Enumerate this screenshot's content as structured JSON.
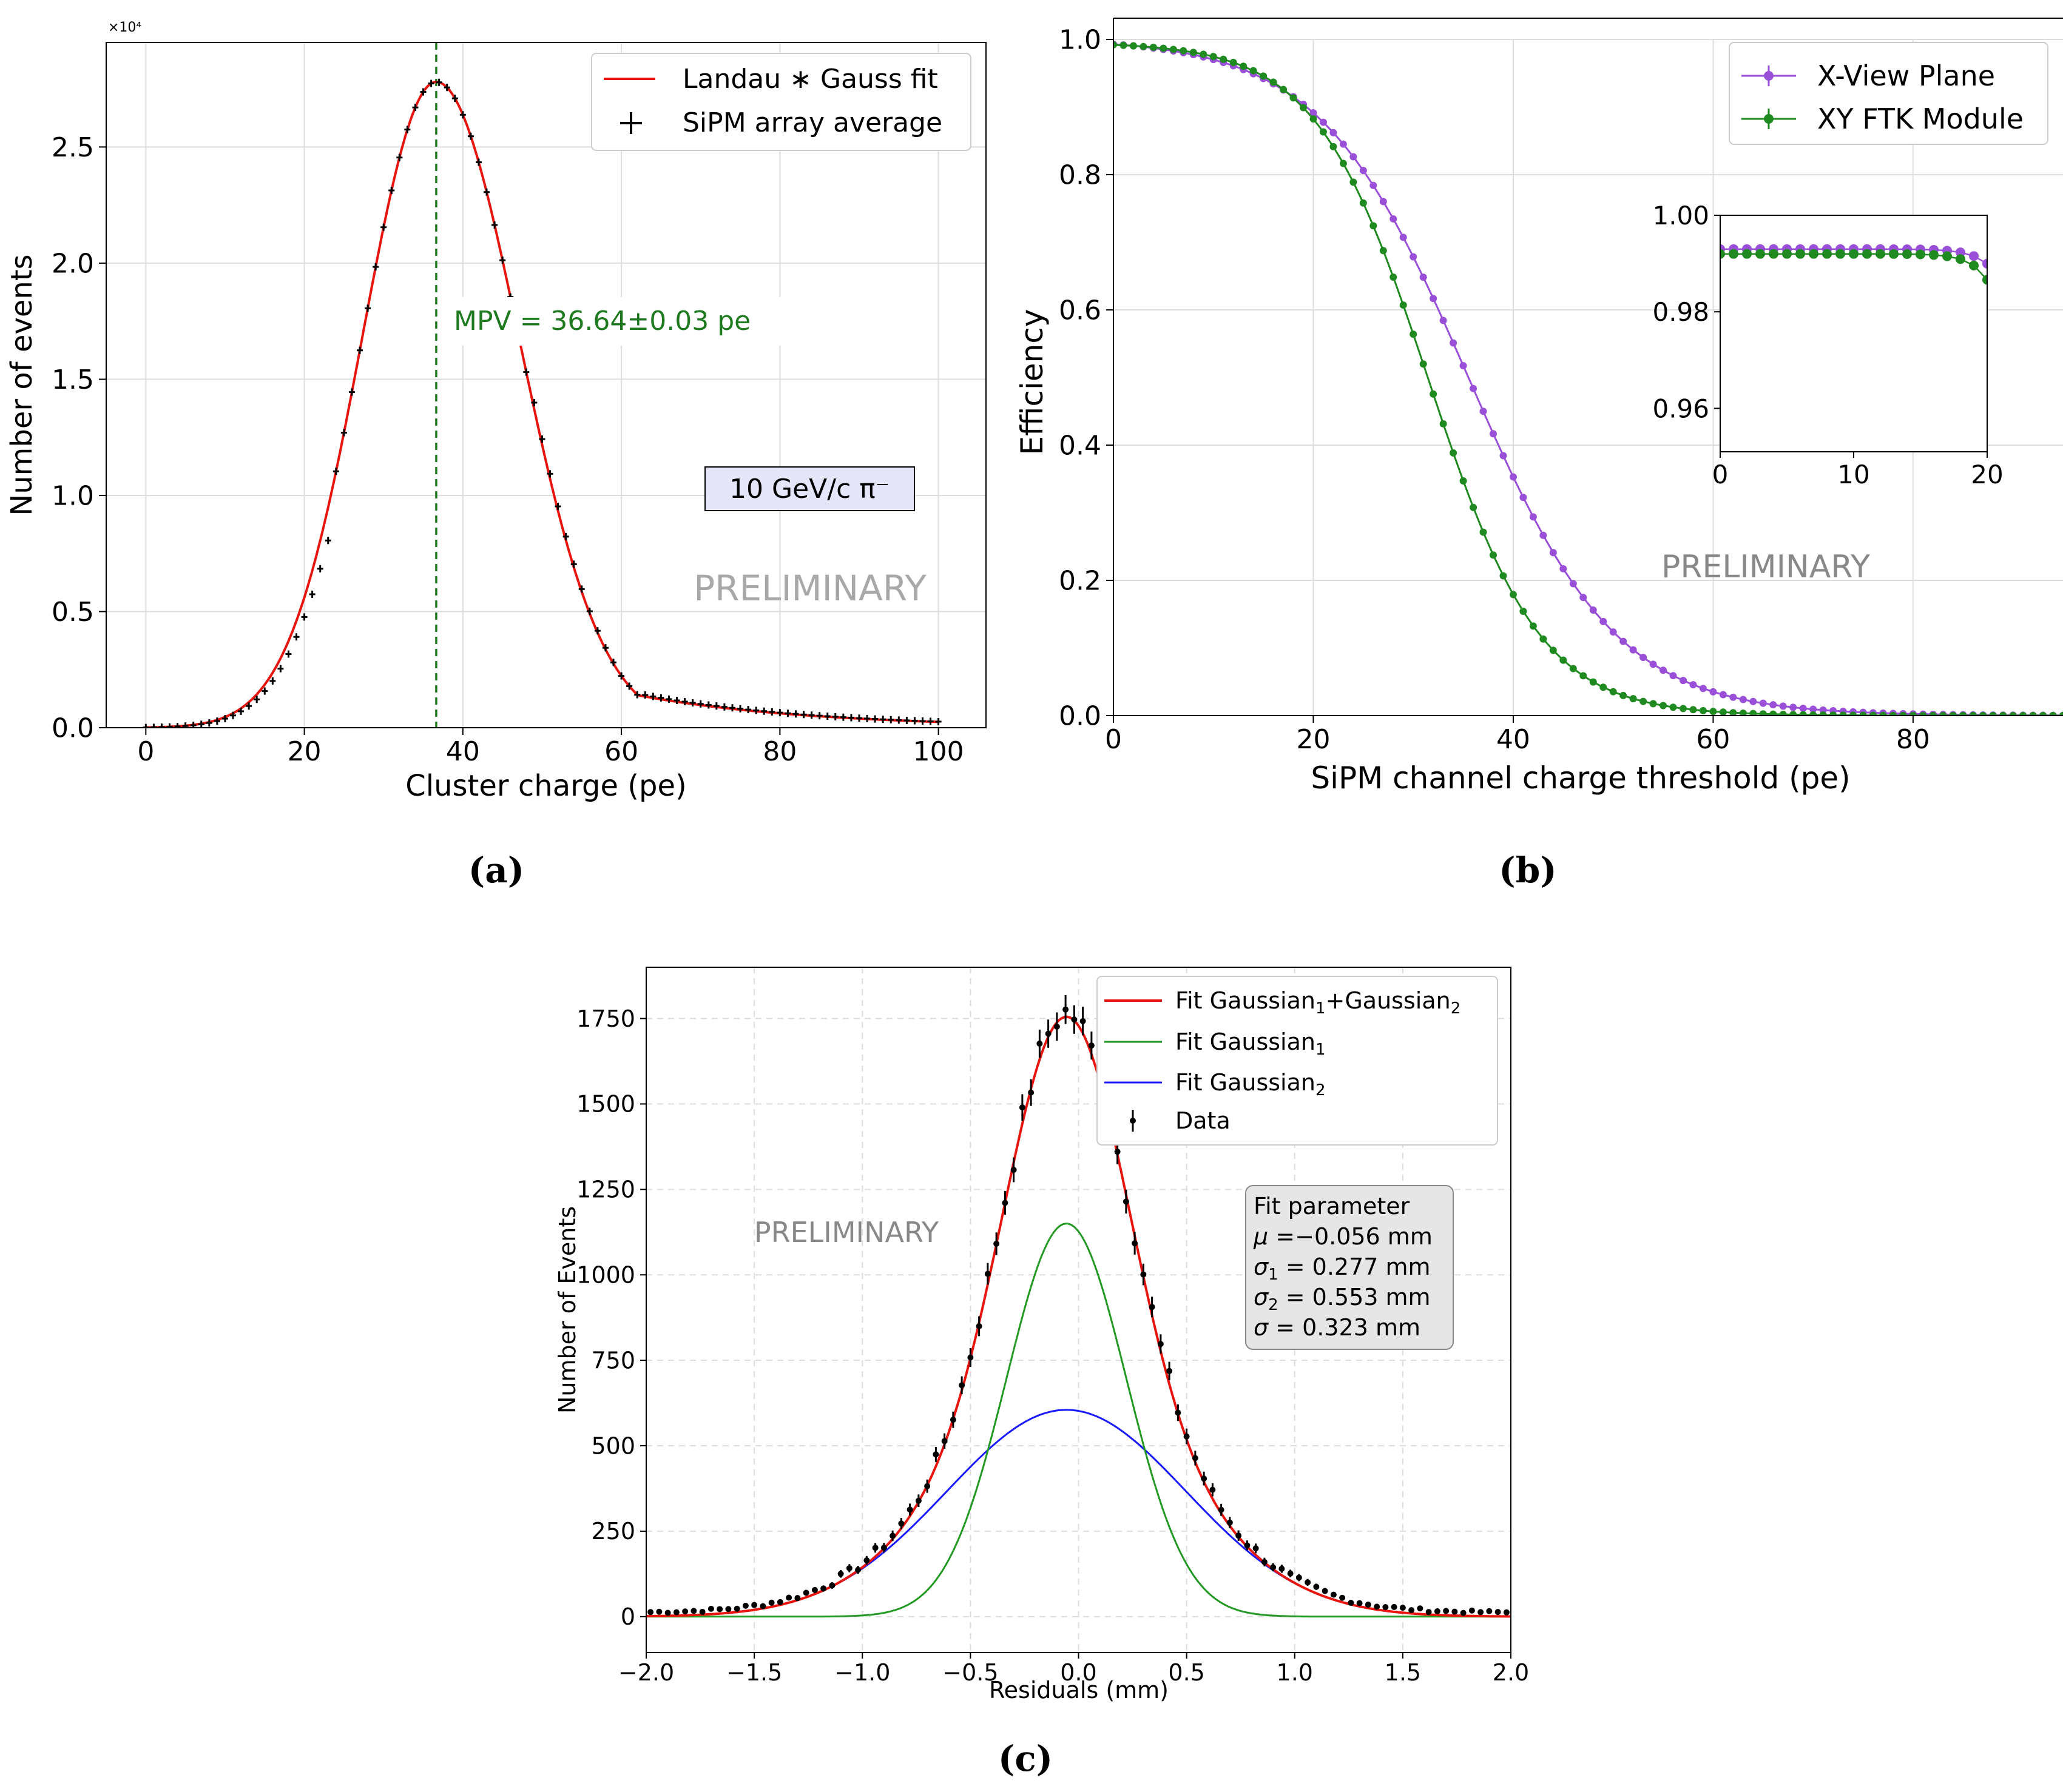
{
  "chart_data": [
    {
      "type": "line",
      "panel_label": "(a)",
      "title": "",
      "xlabel": "Cluster charge (pe)",
      "ylabel": "Number of events",
      "y_multiplier_label": "×10⁴",
      "xlim": [
        -5,
        106
      ],
      "ylim": [
        0,
        2.95
      ],
      "xticks": [
        0,
        20,
        40,
        60,
        80,
        100
      ],
      "yticks": [
        0.0,
        0.5,
        1.0,
        1.5,
        2.0,
        2.5
      ],
      "xtick_labels": [
        "0",
        "20",
        "40",
        "60",
        "80",
        "100"
      ],
      "ytick_labels": [
        "0.0",
        "0.5",
        "1.0",
        "1.5",
        "2.0",
        "2.5"
      ],
      "grid": true,
      "legend_position": "top-right",
      "legend": [
        "Landau ∗ Gauss fit",
        "SiPM array average"
      ],
      "mpv_line_x": 36.64,
      "annotation_mpv": "MPV = 36.64±0.03 pe",
      "annotation_beam": "10 GeV/c π⁻",
      "watermark": "PRELIMINARY",
      "fit_model": {
        "mpv": 36.64,
        "peak": 2.78,
        "rise_sigma": 9.3,
        "fall_sigma": 10.4,
        "tail_scale": 18,
        "tail_level": 0.04
      },
      "data_x_range": [
        0,
        100
      ],
      "data_step": 1
    },
    {
      "type": "line",
      "panel_label": "(b)",
      "xlabel": "SiPM channel charge threshold (pe)",
      "ylabel": "Efficiency",
      "xlim": [
        0,
        95
      ],
      "ylim": [
        0,
        1.0
      ],
      "xticks": [
        0,
        20,
        40,
        60,
        80
      ],
      "yticks": [
        0.0,
        0.2,
        0.4,
        0.6,
        0.8,
        1.0
      ],
      "xtick_labels": [
        "0",
        "20",
        "40",
        "60",
        "80"
      ],
      "ytick_labels": [
        "0.0",
        "0.2",
        "0.4",
        "0.6",
        "0.8",
        "1.0"
      ],
      "grid": true,
      "legend_position": "top-right",
      "watermark": "PRELIMINARY",
      "series": [
        {
          "name": "X-View Plane",
          "color": "#9a4fd8",
          "plateau": 0.993,
          "mid": 35.5,
          "width": 7.4
        },
        {
          "name": "XY FTK Module",
          "color": "#1f8a1f",
          "plateau": 0.992,
          "mid": 31.5,
          "width": 5.6
        }
      ],
      "x_step": 1,
      "inset": {
        "xlim": [
          0,
          20
        ],
        "ylim": [
          0.951,
          1.0
        ],
        "xticks": [
          0,
          10,
          20
        ],
        "yticks": [
          0.96,
          0.98,
          1.0
        ],
        "xtick_labels": [
          "0",
          "10",
          "20"
        ],
        "ytick_labels": [
          "0.96",
          "0.98",
          "1.00"
        ]
      }
    },
    {
      "type": "line",
      "panel_label": "(c)",
      "xlabel": "Residuals (mm)",
      "ylabel": "Number of Events",
      "xlim": [
        -2.0,
        2.0
      ],
      "ylim": [
        -105,
        1900
      ],
      "xticks": [
        -2.0,
        -1.5,
        -1.0,
        -0.5,
        0.0,
        0.5,
        1.0,
        1.5,
        2.0
      ],
      "yticks": [
        0,
        250,
        500,
        750,
        1000,
        1250,
        1500,
        1750
      ],
      "xtick_labels": [
        "−2.0",
        "−1.5",
        "−1.0",
        "−0.5",
        "0.0",
        "0.5",
        "1.0",
        "1.5",
        "2.0"
      ],
      "ytick_labels": [
        "0",
        "250",
        "500",
        "750",
        "1000",
        "1250",
        "1500",
        "1750"
      ],
      "grid": true,
      "legend_position": "top-right",
      "legend": [
        {
          "base": "Fit Gaussian",
          "sub1": "1",
          "mid": "+Gaussian",
          "sub2": "2",
          "color": "#e8150f"
        },
        {
          "base": "Fit Gaussian",
          "sub1": "1",
          "color": "#229922"
        },
        {
          "base": "Fit Gaussian",
          "sub1": "2",
          "color": "#1a1aff"
        },
        {
          "base": "Data",
          "color": "#000000"
        }
      ],
      "fit_params_title": "Fit parameter",
      "fit_params": [
        {
          "sym": "μ",
          "sub": "",
          "text": " =−0.056 mm"
        },
        {
          "sym": "σ",
          "sub": "1",
          "text": " = 0.277 mm"
        },
        {
          "sym": "σ",
          "sub": "2",
          "text": " = 0.553 mm"
        },
        {
          "sym": "σ",
          "sub": "",
          "text": " = 0.323 mm"
        }
      ],
      "watermark": "PRELIMINARY",
      "mu": -0.056,
      "gauss1": {
        "amplitude": 1150,
        "sigma": 0.277
      },
      "gauss2": {
        "amplitude": 605,
        "sigma": 0.553
      },
      "data_x_range": [
        -2.0,
        2.0
      ],
      "data_step": 0.04
    }
  ]
}
